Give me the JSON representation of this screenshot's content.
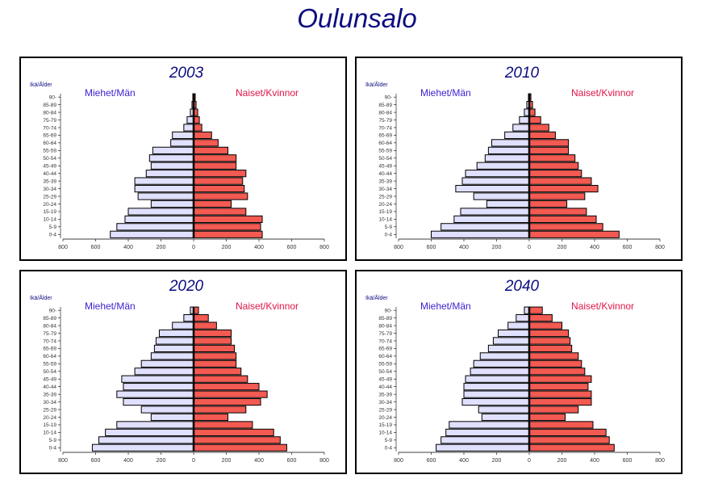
{
  "title": "Oulunsalo",
  "colors": {
    "male_fill": "#e0e0ff",
    "female_fill": "#f25a52",
    "title": "#0b0b80",
    "male_label": "#3a1fd0",
    "female_label": "#e0144a"
  },
  "chart_data": [
    {
      "type": "bar",
      "title": "2003",
      "age_label": "Ikä/Ålder",
      "male_label": "Miehet/Män",
      "female_label": "Naiset/Kvinnor",
      "categories": [
        "0-4",
        "5-9",
        "10-14",
        "15-19",
        "20-24",
        "25-29",
        "30-34",
        "35-39",
        "40-44",
        "45-49",
        "50-54",
        "55-59",
        "60-64",
        "65-69",
        "70-74",
        "75-79",
        "80-84",
        "85-89",
        "90-"
      ],
      "xticks": [
        "800",
        "600",
        "400",
        "200",
        "0",
        "200",
        "400",
        "600",
        "800"
      ],
      "xlim": [
        -800,
        800
      ],
      "series": [
        {
          "name": "Miehet/Män",
          "values": [
            510,
            470,
            420,
            400,
            260,
            340,
            360,
            360,
            290,
            260,
            270,
            250,
            140,
            130,
            60,
            40,
            20,
            10,
            5
          ]
        },
        {
          "name": "Naiset/Kvinnor",
          "values": [
            420,
            410,
            420,
            320,
            230,
            330,
            310,
            300,
            320,
            260,
            260,
            210,
            150,
            110,
            50,
            35,
            25,
            15,
            10
          ]
        }
      ]
    },
    {
      "type": "bar",
      "title": "2010",
      "age_label": "Ikä/Ålder",
      "male_label": "Miehet/Män",
      "female_label": "Naiset/Kvinnor",
      "categories": [
        "0-4",
        "5-9",
        "10-14",
        "15-19",
        "20-24",
        "25-29",
        "30-34",
        "35-39",
        "40-44",
        "45-49",
        "50-54",
        "55-59",
        "60-64",
        "65-69",
        "70-74",
        "75-79",
        "80-84",
        "85-89",
        "90-"
      ],
      "xticks": [
        "800",
        "600",
        "400",
        "200",
        "0",
        "200",
        "400",
        "600",
        "800"
      ],
      "xlim": [
        -800,
        800
      ],
      "series": [
        {
          "name": "Miehet/Män",
          "values": [
            600,
            540,
            460,
            420,
            260,
            340,
            450,
            410,
            390,
            320,
            270,
            250,
            230,
            150,
            100,
            60,
            30,
            15,
            5
          ]
        },
        {
          "name": "Naiset/Kvinnor",
          "values": [
            550,
            450,
            410,
            350,
            230,
            340,
            420,
            380,
            320,
            300,
            280,
            240,
            240,
            160,
            120,
            70,
            35,
            20,
            10
          ]
        }
      ]
    },
    {
      "type": "bar",
      "title": "2020",
      "age_label": "Ikä/Ålder",
      "male_label": "Miehet/Män",
      "female_label": "Naiset/Kvinnor",
      "categories": [
        "0-4",
        "5-9",
        "10-14",
        "15-19",
        "20-24",
        "25-29",
        "30-34",
        "35-39",
        "40-44",
        "45-49",
        "50-54",
        "55-59",
        "60-64",
        "65-69",
        "70-74",
        "75-79",
        "80-84",
        "85-89",
        "90-"
      ],
      "xticks": [
        "800",
        "600",
        "400",
        "200",
        "0",
        "200",
        "400",
        "600",
        "800"
      ],
      "xlim": [
        -800,
        800
      ],
      "series": [
        {
          "name": "Miehet/Män",
          "values": [
            620,
            580,
            540,
            470,
            260,
            320,
            430,
            470,
            430,
            440,
            360,
            320,
            260,
            240,
            230,
            210,
            130,
            60,
            20
          ]
        },
        {
          "name": "Naiset/Kvinnor",
          "values": [
            570,
            530,
            490,
            360,
            210,
            320,
            410,
            450,
            400,
            330,
            290,
            260,
            260,
            250,
            230,
            230,
            140,
            90,
            30
          ]
        }
      ]
    },
    {
      "type": "bar",
      "title": "2040",
      "age_label": "Ikä/Ålder",
      "male_label": "Miehet/Män",
      "female_label": "Naiset/Kvinnor",
      "categories": [
        "0-4",
        "5-9",
        "10-14",
        "15-19",
        "20-24",
        "25-29",
        "30-34",
        "35-39",
        "40-44",
        "45-49",
        "50-54",
        "55-59",
        "60-64",
        "65-69",
        "70-74",
        "75-79",
        "80-84",
        "85-89",
        "90-"
      ],
      "xticks": [
        "800",
        "600",
        "400",
        "200",
        "0",
        "200",
        "400",
        "600",
        "800"
      ],
      "xlim": [
        -800,
        800
      ],
      "series": [
        {
          "name": "Miehet/Män",
          "values": [
            570,
            540,
            510,
            490,
            290,
            310,
            410,
            400,
            400,
            390,
            360,
            340,
            300,
            250,
            220,
            190,
            130,
            80,
            30
          ]
        },
        {
          "name": "Naiset/Kvinnor",
          "values": [
            520,
            490,
            470,
            390,
            220,
            300,
            380,
            380,
            360,
            380,
            340,
            320,
            300,
            260,
            250,
            240,
            200,
            140,
            80
          ]
        }
      ]
    }
  ]
}
